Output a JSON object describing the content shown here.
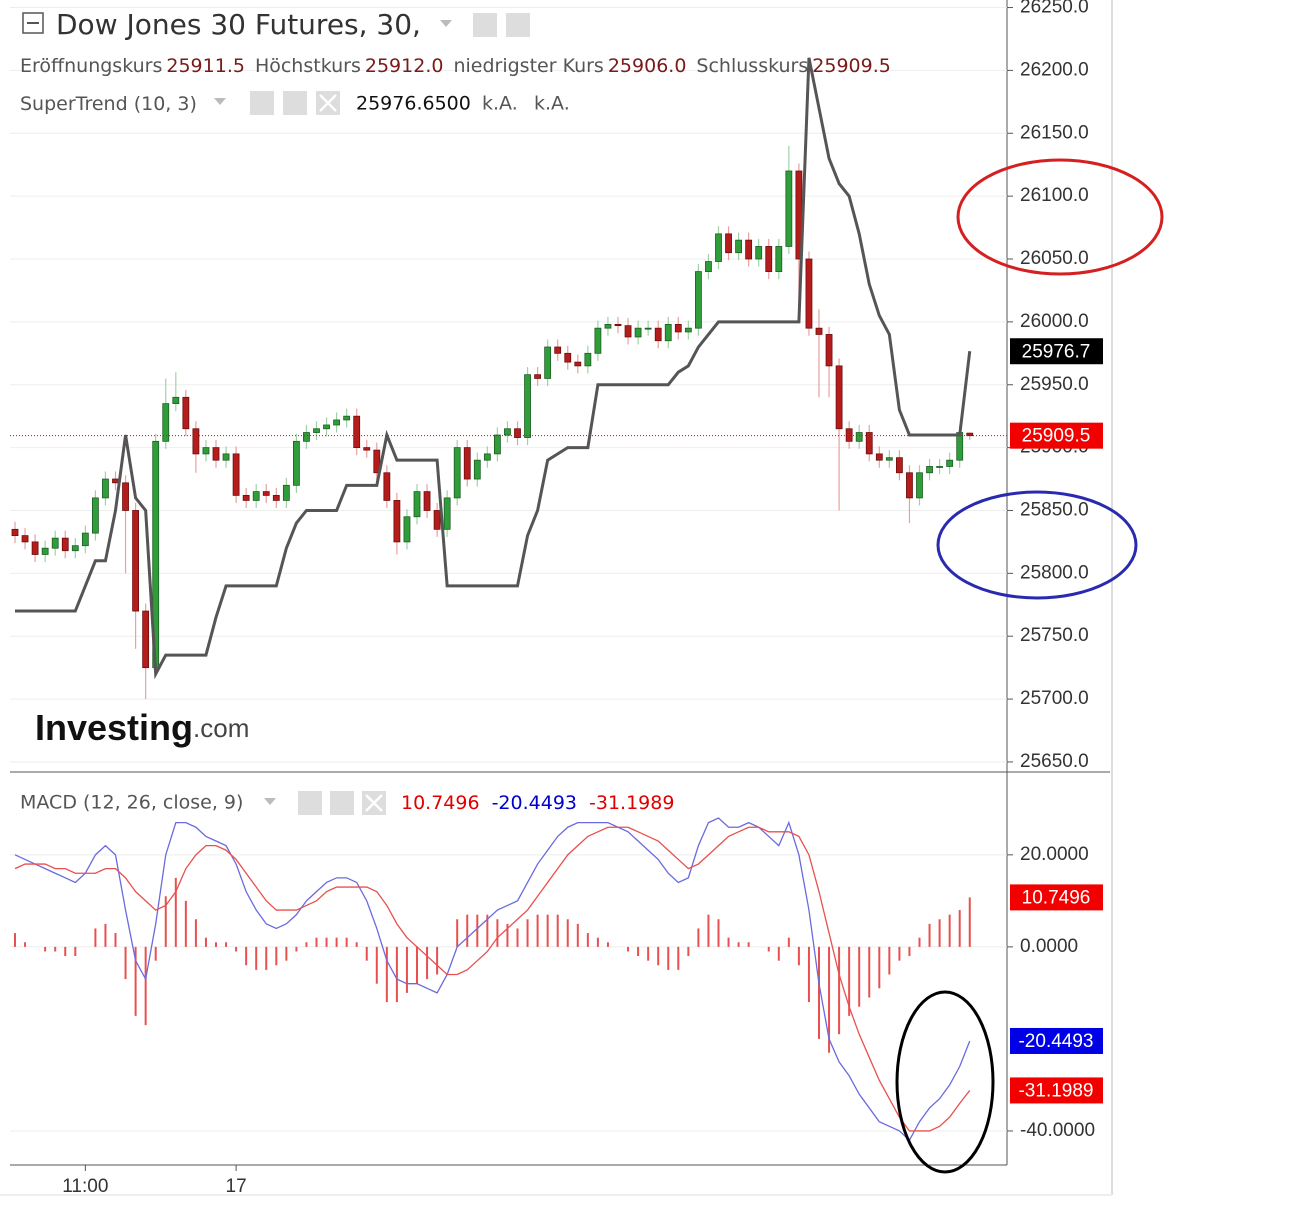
{
  "chart_data": [
    {
      "type": "candlestick",
      "title": "Dow Jones 30 Futures, 30,",
      "ohlc_header": [
        {
          "label": "Eröffnungskurs",
          "text": "25911.5"
        },
        {
          "label": "Höchstkurs",
          "text": "25912.0"
        },
        {
          "label": "niedrigster Kurs",
          "text": "25906.0"
        },
        {
          "label": "Schlusskurs",
          "text": "25909.5"
        }
      ],
      "categories": [
        null,
        null,
        null,
        null,
        null,
        null,
        null,
        "11:00",
        null,
        null,
        null,
        null,
        null,
        null,
        null,
        null,
        null,
        null,
        null,
        null,
        null,
        null,
        "17",
        null,
        null,
        null,
        null,
        null,
        null,
        null,
        null,
        null,
        null,
        null,
        null,
        null,
        null,
        null,
        null,
        null,
        null,
        null,
        null,
        null,
        null,
        null,
        null,
        null,
        null,
        null,
        null,
        null,
        null,
        null,
        null,
        null,
        null,
        null,
        null,
        null,
        null,
        null,
        null,
        null,
        null,
        null,
        null,
        null,
        null,
        null,
        null,
        null,
        null,
        null,
        null,
        null,
        null,
        null,
        null,
        null,
        null,
        null,
        null,
        null,
        null,
        null,
        null,
        null,
        null,
        null,
        null,
        null,
        null,
        null,
        null,
        null
      ],
      "open": [
        25835,
        25830,
        25825,
        25815,
        25820,
        25828,
        25818,
        25822,
        25832,
        25860,
        25875,
        25872,
        25850,
        25770,
        25725,
        25905,
        25935,
        25940,
        25915,
        25895,
        25900,
        25890,
        25895,
        25862,
        25858,
        25865,
        25862,
        25858,
        25870,
        25905,
        25912,
        25915,
        25918,
        25922,
        25925,
        25900,
        25898,
        25880,
        25858,
        25825,
        25845,
        25865,
        25850,
        25835,
        25860,
        25900,
        25875,
        25890,
        25895,
        25910,
        25915,
        25908,
        25958,
        25955,
        25980,
        25975,
        25968,
        25965,
        25975,
        25995,
        25998,
        25997,
        25988,
        25995,
        25995,
        25985,
        25998,
        25992,
        25995,
        26040,
        26048,
        26070,
        26055,
        26065,
        26050,
        26060,
        26040,
        26060,
        26120,
        26050,
        25995,
        25990,
        25965,
        25915,
        25905,
        25912,
        25895,
        25890,
        25892,
        25880,
        25860,
        25880,
        25885,
        25885,
        25890,
        25911.5
      ],
      "high": [
        25841,
        25836,
        25831,
        25826,
        25834,
        25834,
        25828,
        25838,
        25866,
        25881,
        25881,
        25878,
        25856,
        25776,
        25911,
        25955,
        25960,
        25946,
        25921,
        25906,
        25906,
        25901,
        25901,
        25868,
        25871,
        25871,
        25868,
        25876,
        25911,
        25918,
        25921,
        25924,
        25928,
        25931,
        25931,
        25906,
        25904,
        25886,
        25864,
        25851,
        25871,
        25871,
        25856,
        25866,
        25906,
        25906,
        25896,
        25901,
        25916,
        25921,
        25921,
        25964,
        25964,
        25986,
        25986,
        25981,
        25974,
        25981,
        26001,
        26004,
        26004,
        26003,
        26001,
        26001,
        26001,
        26004,
        26004,
        26001,
        26046,
        26054,
        26076,
        26076,
        26071,
        26071,
        26066,
        26066,
        26066,
        26140,
        26126,
        26056,
        26010,
        25996,
        25971,
        25921,
        25918,
        25918,
        25901,
        25898,
        25898,
        25886,
        25886,
        25891,
        25891,
        25896,
        25918,
        25912
      ],
      "low": [
        25824,
        25819,
        25809,
        25809,
        25814,
        25812,
        25812,
        25816,
        25826,
        25854,
        25866,
        25800,
        25740,
        25700,
        25719,
        25899,
        25929,
        25909,
        25880,
        25889,
        25884,
        25884,
        25856,
        25852,
        25852,
        25856,
        25852,
        25852,
        25864,
        25899,
        25906,
        25909,
        25912,
        25916,
        25894,
        25892,
        25874,
        25852,
        25815,
        25819,
        25839,
        25844,
        25829,
        25829,
        25854,
        25869,
        25869,
        25884,
        25889,
        25904,
        25902,
        25902,
        25949,
        25949,
        25969,
        25962,
        25959,
        25959,
        25969,
        25989,
        25991,
        25982,
        25982,
        25989,
        25979,
        25979,
        25986,
        25986,
        25989,
        26034,
        26042,
        26049,
        26049,
        26044,
        26044,
        26034,
        26034,
        26054,
        26000,
        25989,
        25940,
        25940,
        25850,
        25899,
        25899,
        25889,
        25884,
        25884,
        25874,
        25840,
        25854,
        25874,
        25879,
        25879,
        25884,
        25906
      ],
      "close": [
        25830,
        25825,
        25815,
        25820,
        25828,
        25818,
        25822,
        25832,
        25860,
        25875,
        25872,
        25850,
        25770,
        25725,
        25905,
        25935,
        25940,
        25915,
        25895,
        25900,
        25890,
        25895,
        25862,
        25858,
        25865,
        25862,
        25858,
        25870,
        25905,
        25912,
        25915,
        25918,
        25922,
        25925,
        25900,
        25898,
        25880,
        25858,
        25825,
        25845,
        25865,
        25850,
        25835,
        25860,
        25900,
        25875,
        25890,
        25895,
        25910,
        25915,
        25908,
        25958,
        25955,
        25980,
        25975,
        25968,
        25965,
        25975,
        25995,
        25998,
        25997,
        25988,
        25995,
        25995,
        25985,
        25998,
        25992,
        25995,
        26040,
        26048,
        26070,
        26055,
        26065,
        26050,
        26060,
        26040,
        26060,
        26120,
        26050,
        25995,
        25990,
        25965,
        25915,
        25905,
        25912,
        25895,
        25890,
        25892,
        25880,
        25860,
        25880,
        25885,
        25885,
        25890,
        25912,
        25909.5
      ],
      "up_color": "#2f9e3a",
      "down_color": "#b51d1d",
      "series": [
        {
          "name": "SuperTrend (10, 3)",
          "color": "#555555",
          "header_value": "25976.6500",
          "extra": [
            "k.A.",
            "k.A."
          ],
          "tag_label": "25976.7",
          "tag_color": "#000000",
          "values": [
            25770,
            25770,
            25770,
            25770,
            25770,
            25770,
            25770,
            25790,
            25810,
            25810,
            25850,
            25910,
            25860,
            25850,
            25720,
            25735,
            25735,
            25735,
            25735,
            25735,
            25765,
            25790,
            25790,
            25790,
            25790,
            25790,
            25790,
            25820,
            25840,
            25850,
            25850,
            25850,
            25850,
            25870,
            25870,
            25870,
            25870,
            25910,
            25890,
            25890,
            25890,
            25890,
            25890,
            25790,
            25790,
            25790,
            25790,
            25790,
            25790,
            25790,
            25790,
            25830,
            25850,
            25890,
            25895,
            25900,
            25900,
            25900,
            25950,
            25950,
            25950,
            25950,
            25950,
            25950,
            25950,
            25950,
            25960,
            25965,
            25980,
            25990,
            26000,
            26000,
            26000,
            26000,
            26000,
            26000,
            26000,
            26000,
            26000,
            26210,
            26170,
            26130,
            26110,
            26100,
            26070,
            26030,
            26005,
            25990,
            25930,
            25910,
            25910,
            25910,
            25910,
            25910,
            25910,
            25976.65
          ]
        }
      ],
      "close_tag_color": "#f20000",
      "ylim": [
        25642,
        26256
      ],
      "yticks": [
        {
          "value": 25650,
          "label": "25650.0"
        },
        {
          "value": 25700,
          "label": "25700.0"
        },
        {
          "value": 25750,
          "label": "25750.0"
        },
        {
          "value": 25800,
          "label": "25800.0"
        },
        {
          "value": 25850,
          "label": "25850.0"
        },
        {
          "value": 25900,
          "label": "25900.0"
        },
        {
          "value": 25950,
          "label": "25950.0"
        },
        {
          "value": 26000,
          "label": "26000.0"
        },
        {
          "value": 26050,
          "label": "26050.0"
        },
        {
          "value": 26100,
          "label": "26100.0"
        },
        {
          "value": 26150,
          "label": "26150.0"
        },
        {
          "value": 26200,
          "label": "26200.0"
        },
        {
          "value": 26250,
          "label": "26250.0"
        }
      ],
      "grid": true,
      "watermark": {
        "brand": "Investing",
        "suffix": ".com"
      }
    },
    {
      "type": "macd",
      "title": "MACD (12, 26, close, 9)",
      "histogram": {
        "color": "#e8504f",
        "values": [
          3,
          1,
          0,
          -1,
          -1,
          -2,
          -2,
          0,
          4,
          5,
          3,
          -7,
          -15,
          -17,
          -3,
          11,
          15,
          10,
          6,
          2,
          1,
          1,
          -1,
          -4,
          -5,
          -5,
          -4,
          -3,
          -1,
          1,
          2,
          2,
          2,
          2,
          1,
          -3,
          -8,
          -12,
          -12,
          -10,
          -8,
          -7,
          -6,
          0,
          6,
          7,
          7,
          7,
          6,
          5,
          4,
          6,
          7,
          7,
          7,
          6,
          5,
          3,
          2,
          1,
          0,
          -1,
          -2,
          -3,
          -4,
          -5,
          -5,
          -2,
          4,
          7,
          6,
          2,
          1,
          1,
          0,
          -1,
          -3,
          2,
          -4,
          -12,
          -20,
          -23,
          -19,
          -15,
          -13,
          -11,
          -9,
          -6,
          -3,
          -2,
          2,
          5,
          6,
          7,
          8,
          10.7496
        ],
        "header_color": "#e00000",
        "tag_color": "#f20000"
      },
      "macd": {
        "color": "#6a6ae0",
        "values": [
          20,
          19,
          18,
          17,
          16,
          15,
          14,
          16,
          20,
          22,
          20,
          8,
          -3,
          -7,
          5,
          20,
          27,
          27,
          26,
          24,
          23,
          22,
          18,
          12,
          8,
          5,
          4,
          5,
          7,
          10,
          12,
          14,
          15,
          15,
          14,
          10,
          4,
          -3,
          -7,
          -8,
          -8,
          -9,
          -10,
          -6,
          0,
          2,
          4,
          6,
          8,
          9,
          10,
          14,
          18,
          21,
          24,
          26,
          27,
          27,
          27,
          27,
          26,
          25,
          23,
          21,
          19,
          16,
          14,
          15,
          22,
          27,
          28,
          26,
          26,
          27,
          26,
          24,
          22,
          27,
          20,
          8,
          -8,
          -20,
          -25,
          -28,
          -32,
          -35,
          -38,
          -39,
          -40,
          -42,
          -38,
          -35,
          -33,
          -30,
          -26,
          -20.4493
        ],
        "header_color": "#0000d0",
        "tag_color": "#0000e6"
      },
      "signal": {
        "color": "#e8504f",
        "values": [
          17,
          18,
          18,
          18,
          17,
          17,
          16,
          16,
          16,
          17,
          17,
          15,
          12,
          10,
          8,
          9,
          12,
          17,
          20,
          22,
          22,
          21,
          19,
          16,
          13,
          10,
          8,
          8,
          8,
          9,
          10,
          12,
          13,
          13,
          13,
          13,
          12,
          9,
          5,
          2,
          0,
          -2,
          -4,
          -6,
          -6,
          -5,
          -3,
          -1,
          2,
          4,
          6,
          8,
          11,
          14,
          17,
          20,
          22,
          24,
          25,
          26,
          26,
          26,
          25,
          24,
          23,
          21,
          19,
          17,
          18,
          20,
          22,
          24,
          25,
          26,
          26,
          25,
          25,
          25,
          24,
          20,
          12,
          3,
          -6,
          -13,
          -19,
          -24,
          -29,
          -33,
          -37,
          -40,
          -40,
          -40,
          -39,
          -37,
          -34,
          -31.1989
        ],
        "header_color": "#e00000",
        "tag_color": "#f20000"
      },
      "ylim": [
        -47.4,
        38
      ],
      "yticks": [
        {
          "value": 20,
          "label": "20.0000"
        },
        {
          "value": 0,
          "label": "0.0000"
        },
        {
          "value": -40,
          "label": "-40.0000"
        }
      ],
      "grid": true
    }
  ]
}
